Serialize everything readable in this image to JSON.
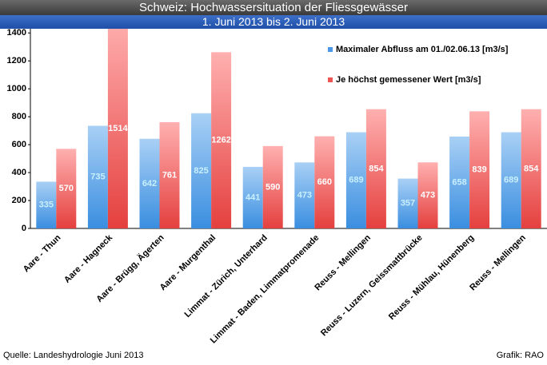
{
  "chart_data": {
    "type": "bar",
    "title": "Schweiz: Hochwassersituation der Fliessgewässer",
    "subtitle": "1. Juni 2013 bis 2. Juni 2013",
    "source": "Quelle: Landeshydrologie Juni 2013",
    "credit": "Grafik: RAO",
    "categories": [
      "Aare - Thun",
      "Aare - Hagneck",
      "Aare - Brügg, Ägerten",
      "Aare - Murgenthal",
      "Limmat - Zürich, Unterhard",
      "Limmat - Baden, Limmatpromenade",
      "Reuss - Mellingen",
      "Reuss - Luzern, Geissmattbrücke",
      "Reuss - Mühlau, Hünenberg",
      "Reuss - Mellingen"
    ],
    "series": [
      {
        "name": "Maximaler Abfluss am 01./02.06.13 [m3/s]",
        "color": "#4a98e6",
        "label_color": "#c8f0ff",
        "values": [
          335,
          735,
          642,
          825,
          441,
          473,
          689,
          357,
          658,
          689
        ]
      },
      {
        "name": "Je höchst gemessener Wert [m3/s]",
        "color": "#ec5552",
        "label_color": "#ffffff",
        "values": [
          570,
          1514,
          761,
          1262,
          590,
          660,
          854,
          473,
          839,
          854
        ]
      }
    ],
    "ylim": [
      0,
      1430
    ],
    "yticks": [
      0,
      200,
      400,
      600,
      800,
      1000,
      1200,
      1400
    ],
    "grid": false,
    "legend": "top-right"
  }
}
